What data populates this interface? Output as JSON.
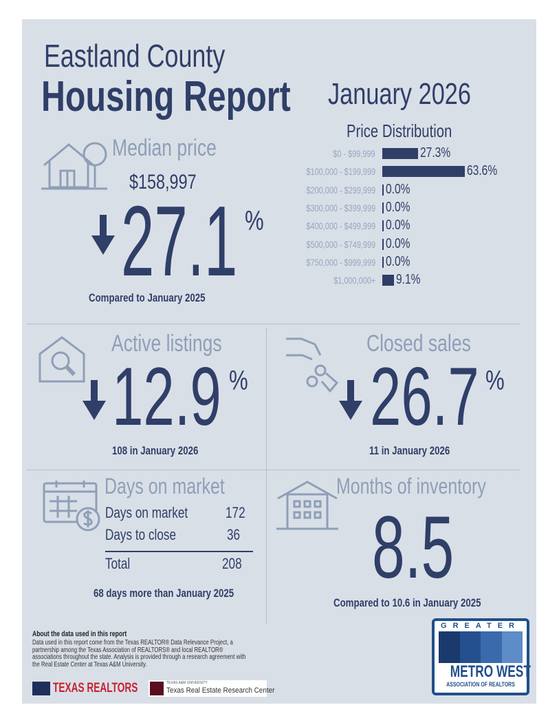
{
  "header": {
    "county": "Eastland County",
    "title": "Housing Report",
    "period": "January 2026"
  },
  "median_price": {
    "heading": "Median price",
    "value": "$158,997",
    "direction": "down",
    "change": "27.1",
    "unit": "%",
    "note": "Compared to January 2025",
    "icon": "house-tree-icon"
  },
  "price_distribution": {
    "heading": "Price Distribution",
    "rows": [
      {
        "label": "$0 - $99,999",
        "value": 27.3,
        "text": "27.3%"
      },
      {
        "label": "$100,000 - $199,999",
        "value": 63.6,
        "text": "63.6%"
      },
      {
        "label": "$200,000 - $299,999",
        "value": 0.0,
        "text": "0.0%"
      },
      {
        "label": "$300,000 - $399,999",
        "value": 0.0,
        "text": "0.0%"
      },
      {
        "label": "$400,000 - $499,999",
        "value": 0.0,
        "text": "0.0%"
      },
      {
        "label": "$500,000 - $749,999",
        "value": 0.0,
        "text": "0.0%"
      },
      {
        "label": "$750,000 - $999,999",
        "value": 0.0,
        "text": "0.0%"
      },
      {
        "label": "$1,000,000+",
        "value": 9.1,
        "text": "9.1%"
      }
    ]
  },
  "active_listings": {
    "heading": "Active listings",
    "direction": "down",
    "change": "12.9",
    "unit": "%",
    "note": "108 in January 2026",
    "icon": "house-search-icon"
  },
  "closed_sales": {
    "heading": "Closed sales",
    "direction": "down",
    "change": "26.7",
    "unit": "%",
    "note": "11 in January 2026",
    "icon": "hand-keys-icon"
  },
  "days_on_market": {
    "heading": "Days on market",
    "rows": [
      {
        "label": "Days on market",
        "value": "172"
      },
      {
        "label": "Days to close",
        "value": "36"
      }
    ],
    "total_label": "Total",
    "total_value": "208",
    "note": "68 days more than January 2025",
    "icon": "calendar-dollar-icon"
  },
  "months_inventory": {
    "heading": "Months of inventory",
    "value": "8.5",
    "note": "Compared to 10.6 in January 2025",
    "icon": "building-icon"
  },
  "footer": {
    "about_title": "About the data used in this report",
    "about_text": "Data used in this report come from the Texas REALTOR® Data Relevance Project, a partnership among the Texas Association of REALTORS® and local REALTOR® associations throughout the state. Analysis is provided through a research agreement with the Real Estate Center at Texas A&M University.",
    "logo_texas_realtors": "TEXAS REALTORS",
    "logo_tamu_small": "TEXAS A&M UNIVERSITY",
    "logo_tamu": "Texas Real Estate Research Center",
    "logo_metro_west": {
      "top": "GREATER",
      "main": "METRO WEST",
      "sub": "ASSOCIATION OF REALTORS"
    }
  },
  "colors": {
    "navy": "#2f3f68",
    "muted": "#8e9fb7",
    "background": "#d9dfe7",
    "red": "#c8202f"
  }
}
